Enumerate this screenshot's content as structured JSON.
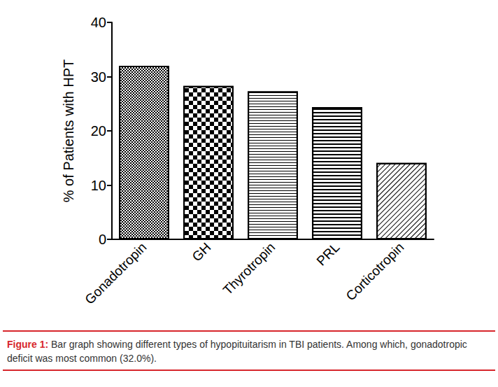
{
  "chart_data": {
    "type": "bar",
    "categories": [
      "Gonadotropin",
      "GH",
      "Thyrotropin",
      "PRL",
      "Corticotropin"
    ],
    "values": [
      32.0,
      28.3,
      27.3,
      24.4,
      14.1
    ],
    "color": "#000000",
    "y_label": "% of Patients with HPT",
    "ylim": [
      0,
      40
    ],
    "yticks": [
      0,
      10,
      20,
      30,
      40
    ],
    "grid": false,
    "caption_label": "Figure 1:",
    "caption": "Bar graph showing different types of hypopituitarism in TBI patients. Among which, gonadotropic deficit was most common (32.0%)."
  }
}
